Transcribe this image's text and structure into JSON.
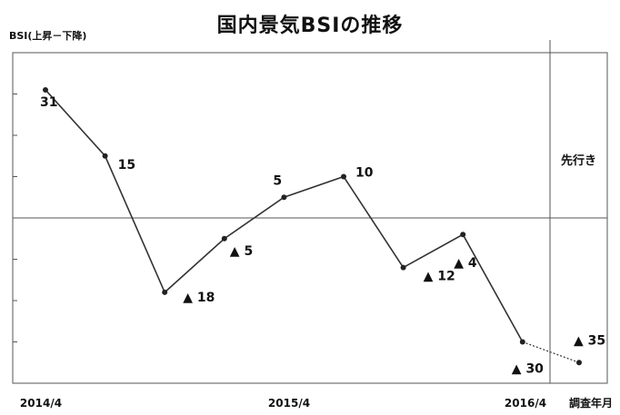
{
  "chart_data": {
    "type": "line",
    "title": "国内景気BSIの推移",
    "ylabel": "BSI(上昇－下降)",
    "xlabel": "調査年月",
    "x_tick_labels": [
      "2014/4",
      "2015/4",
      "2016/4"
    ],
    "forecast_label": "先行き",
    "ylim": [
      -40,
      40
    ],
    "series": [
      {
        "values": [
          31,
          15,
          -18,
          -5,
          5,
          10,
          -12,
          -4,
          -30
        ]
      }
    ],
    "forecast": {
      "from_value": -30,
      "value": -35
    },
    "data_labels": [
      "31",
      "15",
      "▲ 18",
      "▲ 5",
      "5",
      "10",
      "▲ 12",
      "▲ 4",
      "▲ 30"
    ],
    "forecast_data_label": "▲ 35",
    "grid": false
  }
}
